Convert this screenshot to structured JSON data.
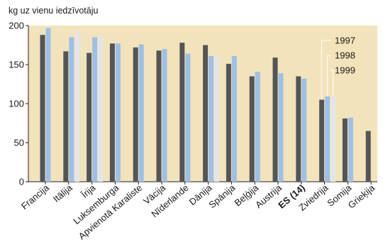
{
  "chart_data": {
    "type": "bar",
    "ylabel": "kg uz vienu iedzīvotāju",
    "ylim": [
      0,
      200
    ],
    "yticks": [
      0,
      50,
      100,
      150,
      200
    ],
    "grid": false,
    "categories": [
      "Francija",
      "Itālija",
      "Īrija",
      "Luksemburga",
      "Apvienotā Karaliste",
      "Vācija",
      "Nīderlande",
      "Dānija",
      "Spānija",
      "Beļģija",
      "Austrija",
      "ES (14)",
      "Zviedrija",
      "Somija",
      "Grieķija"
    ],
    "bold_category": "ES (14)",
    "series": [
      {
        "name": "1997",
        "color": "#555555",
        "values": [
          188,
          167,
          165,
          177,
          172,
          168,
          178,
          175,
          151,
          135,
          159,
          135,
          105,
          81,
          65
        ]
      },
      {
        "name": "1998",
        "color": "#9cc0e8",
        "values": [
          197,
          185,
          185,
          177,
          176,
          170,
          164,
          161,
          161,
          141,
          139,
          132,
          109,
          82,
          null
        ]
      },
      {
        "name": "1999",
        "color": "#e5e5e5",
        "values": [
          null,
          193,
          188,
          null,
          null,
          null,
          null,
          160,
          null,
          null,
          null,
          null,
          110,
          null,
          null
        ]
      }
    ],
    "legend_position": "right"
  }
}
